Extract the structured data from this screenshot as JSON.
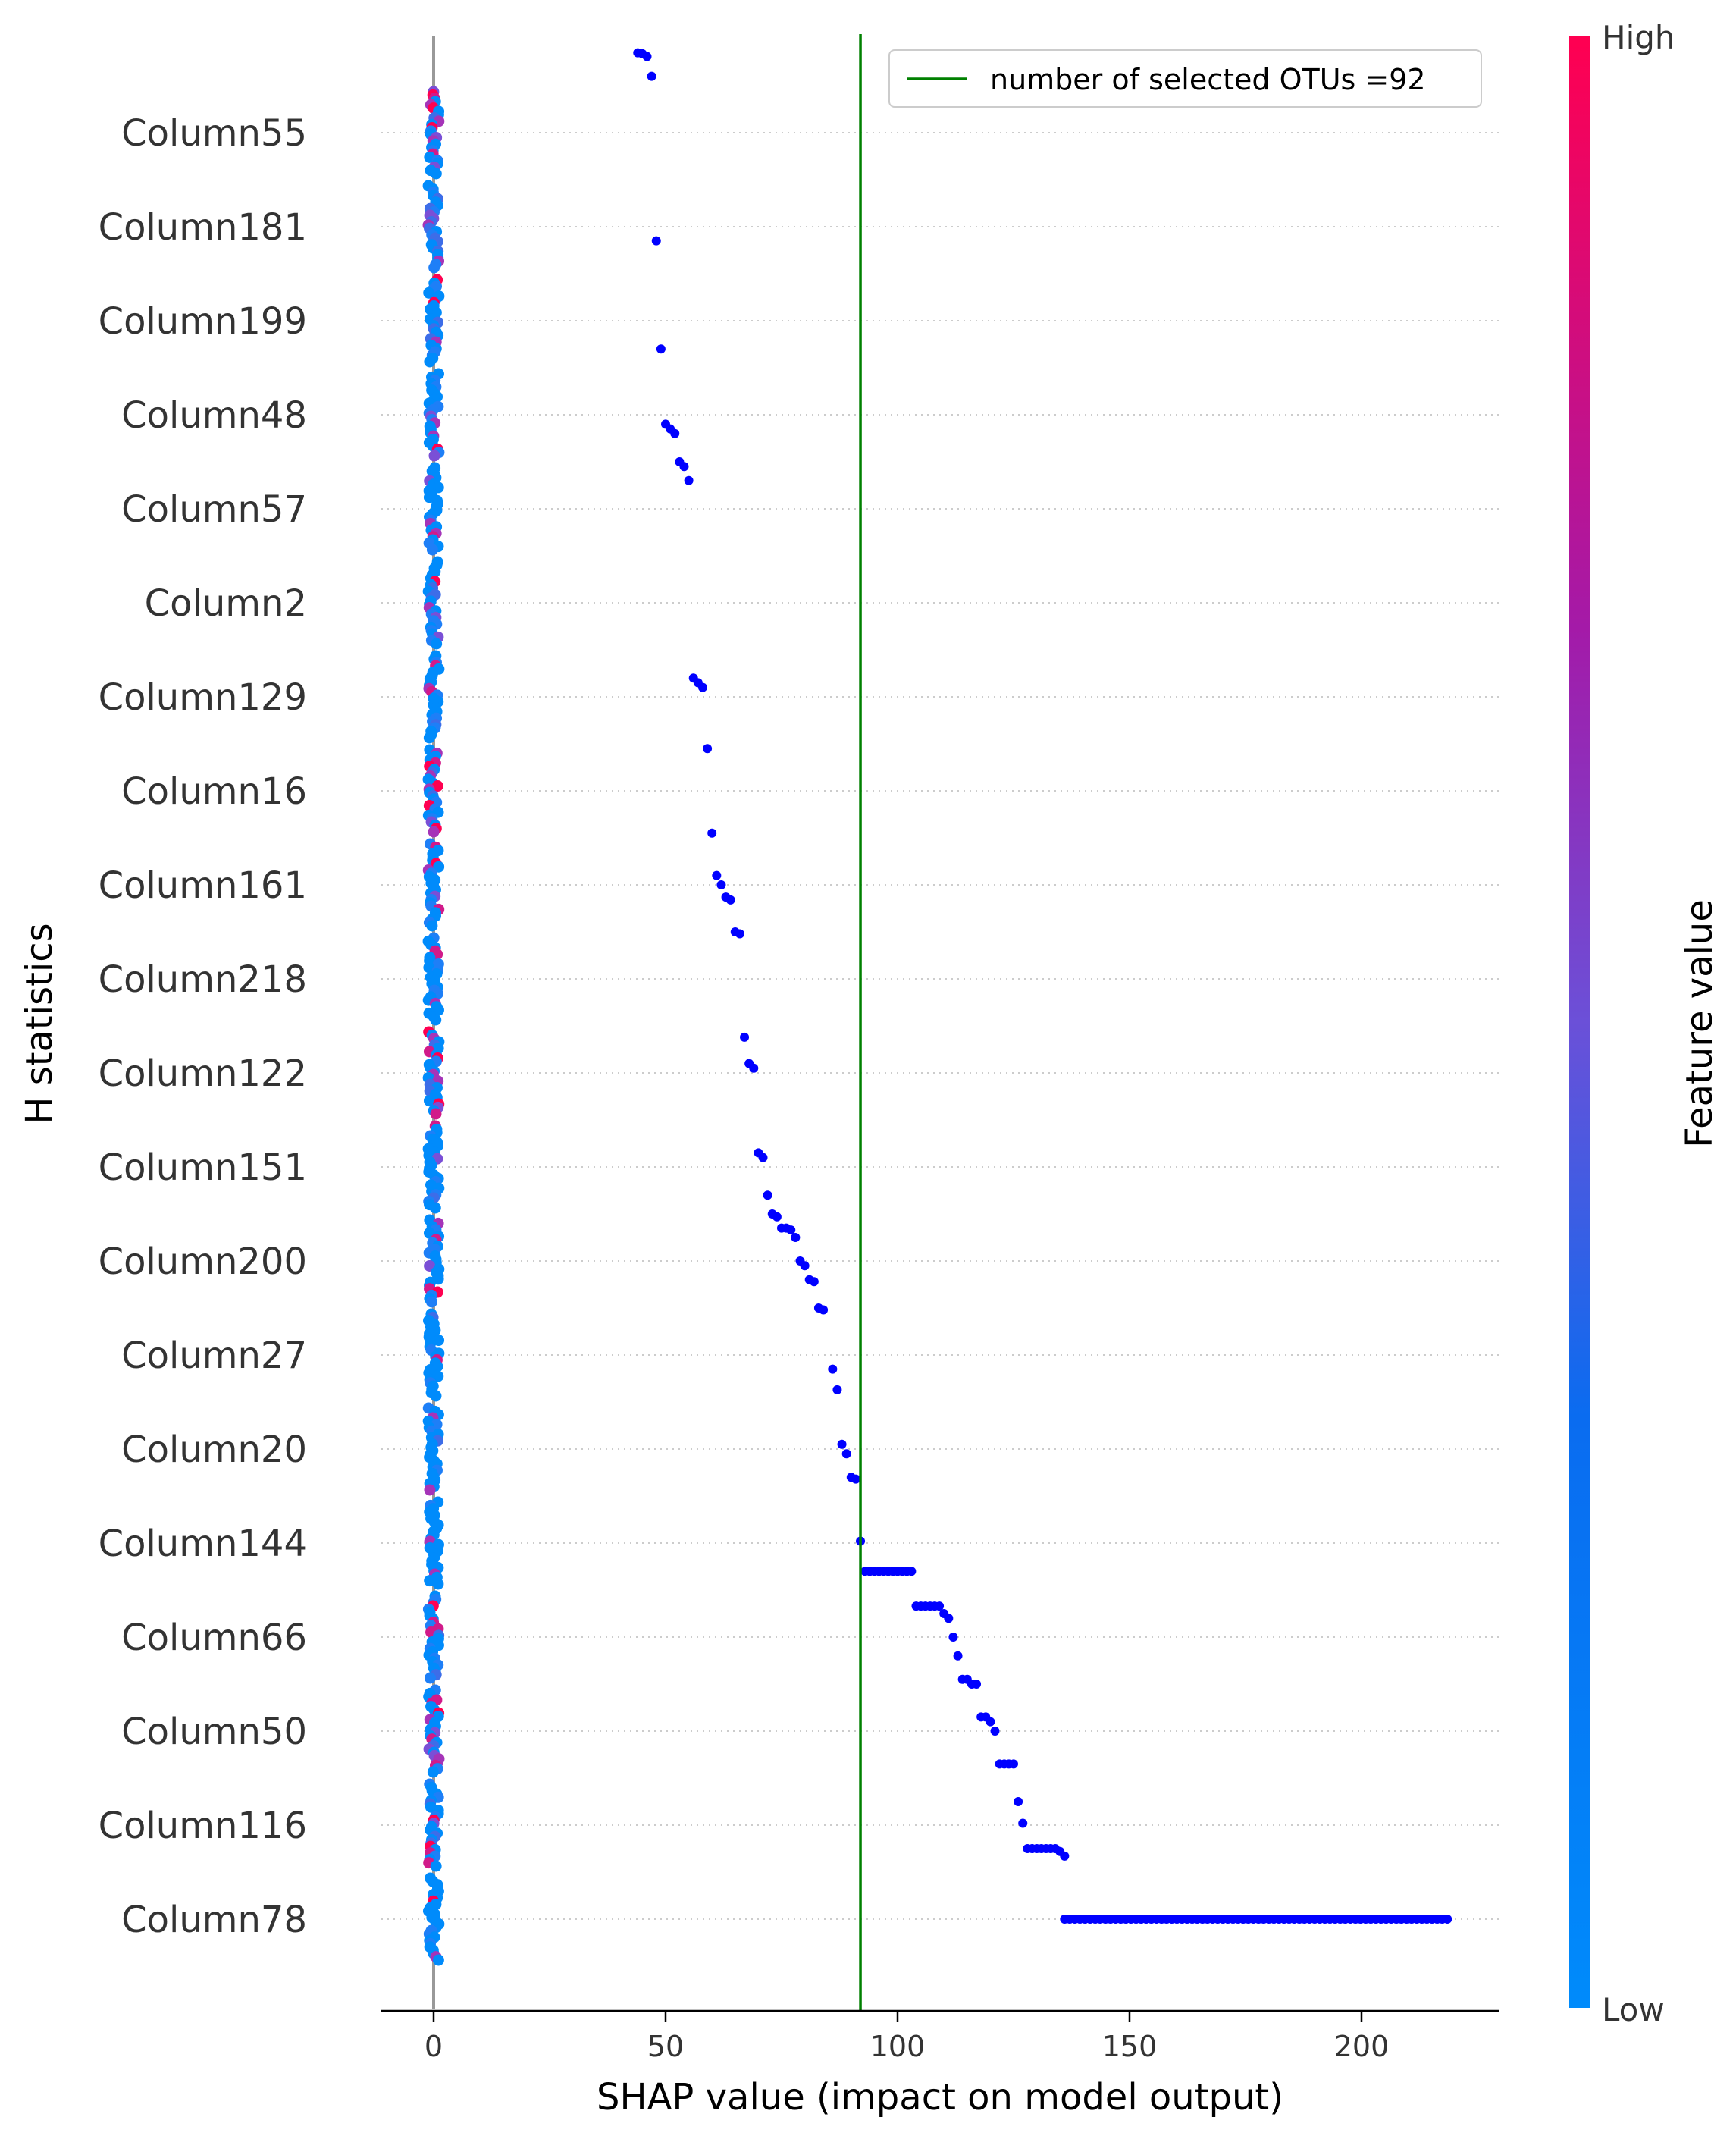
{
  "chart_data": {
    "type": "scatter",
    "xlabel": "SHAP value (impact on model output)",
    "ylabel": "H statistics",
    "xlim": [
      -11,
      230
    ],
    "xticks": [
      0,
      50,
      100,
      150,
      200
    ],
    "categories": [
      "Column55",
      "Column181",
      "Column199",
      "Column48",
      "Column57",
      "Column2",
      "Column129",
      "Column16",
      "Column161",
      "Column218",
      "Column122",
      "Column151",
      "Column200",
      "Column27",
      "Column20",
      "Column144",
      "Column66",
      "Column50",
      "Column116",
      "Column78"
    ],
    "reference_line": {
      "x": 92,
      "color": "#008000",
      "label": "number of selected OTUs =92"
    },
    "legend_position": "top-right",
    "colorbar": {
      "title": "Feature value",
      "high_label": "High",
      "low_label": "Low",
      "high_color": "#ff0051",
      "low_color": "#008bfb"
    },
    "grid": true,
    "trend_points": [
      [
        44,
        -0.85
      ],
      [
        45,
        -0.84
      ],
      [
        46,
        -0.81
      ],
      [
        47,
        -0.6
      ],
      [
        48,
        1.15
      ],
      [
        49,
        2.3
      ],
      [
        50,
        3.1
      ],
      [
        51,
        3.15
      ],
      [
        52,
        3.2
      ],
      [
        53,
        3.5
      ],
      [
        54,
        3.55
      ],
      [
        55,
        3.7
      ],
      [
        56,
        5.8
      ],
      [
        57,
        5.85
      ],
      [
        58,
        5.9
      ],
      [
        59,
        6.55
      ],
      [
        60,
        7.45
      ],
      [
        61,
        7.9
      ],
      [
        62,
        8.0
      ],
      [
        63,
        8.13
      ],
      [
        64,
        8.16
      ],
      [
        65,
        8.5
      ],
      [
        66,
        8.52
      ],
      [
        67,
        9.62
      ],
      [
        68,
        9.9
      ],
      [
        69,
        9.95
      ],
      [
        70,
        10.85
      ],
      [
        71,
        10.9
      ],
      [
        72,
        11.3
      ],
      [
        73,
        11.5
      ],
      [
        74,
        11.53
      ],
      [
        75,
        11.65
      ],
      [
        76,
        11.65
      ],
      [
        77,
        11.67
      ],
      [
        78,
        11.75
      ],
      [
        79,
        12.0
      ],
      [
        80,
        12.05
      ],
      [
        81,
        12.2
      ],
      [
        82,
        12.22
      ],
      [
        83,
        12.5
      ],
      [
        84,
        12.52
      ],
      [
        86,
        13.15
      ],
      [
        87,
        13.37
      ],
      [
        88,
        13.95
      ],
      [
        89,
        14.05
      ],
      [
        90,
        14.3
      ],
      [
        91,
        14.32
      ],
      [
        92,
        14.98
      ],
      [
        93,
        15.3
      ],
      [
        94,
        15.3
      ],
      [
        95,
        15.3
      ],
      [
        96,
        15.3
      ],
      [
        97,
        15.3
      ],
      [
        98,
        15.3
      ],
      [
        99,
        15.3
      ],
      [
        100,
        15.3
      ],
      [
        101,
        15.3
      ],
      [
        102,
        15.3
      ],
      [
        103,
        15.3
      ],
      [
        104,
        15.67
      ],
      [
        105,
        15.67
      ],
      [
        106,
        15.67
      ],
      [
        107,
        15.67
      ],
      [
        108,
        15.67
      ],
      [
        109,
        15.67
      ],
      [
        110,
        15.75
      ],
      [
        111,
        15.8
      ],
      [
        112,
        16.0
      ],
      [
        113,
        16.2
      ],
      [
        114,
        16.45
      ],
      [
        115,
        16.45
      ],
      [
        116,
        16.5
      ],
      [
        117,
        16.5
      ],
      [
        118,
        16.85
      ],
      [
        119,
        16.85
      ],
      [
        120,
        16.9
      ],
      [
        121,
        17.0
      ],
      [
        122,
        17.35
      ],
      [
        123,
        17.35
      ],
      [
        124,
        17.35
      ],
      [
        125,
        17.35
      ],
      [
        126,
        17.75
      ],
      [
        127,
        17.98
      ],
      [
        128,
        18.25
      ],
      [
        129,
        18.25
      ],
      [
        130,
        18.25
      ],
      [
        131,
        18.25
      ],
      [
        132,
        18.25
      ],
      [
        133,
        18.25
      ],
      [
        134,
        18.25
      ],
      [
        135,
        18.28
      ],
      [
        136,
        18.33
      ]
    ],
    "column78_band": {
      "x_start": 136,
      "x_end": 219,
      "step": 1.1
    }
  }
}
